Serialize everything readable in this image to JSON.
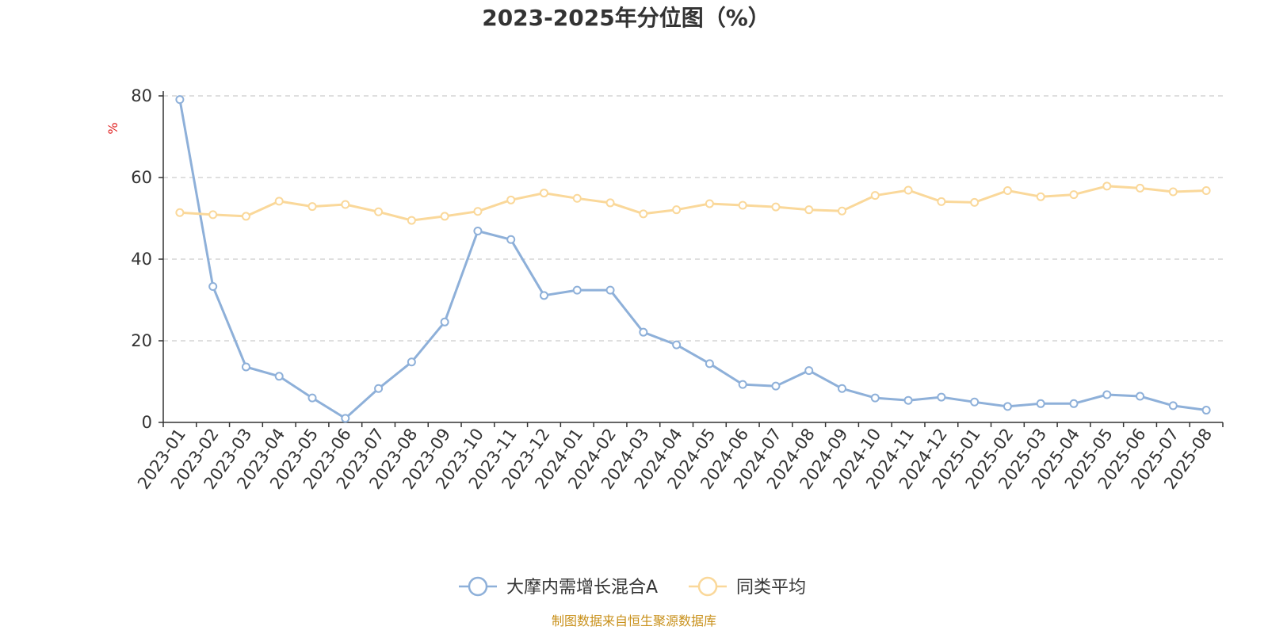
{
  "chart_data": {
    "type": "line",
    "title": "2023-2025年分位图（%）",
    "ylabel": "%",
    "ylim": [
      0,
      80
    ],
    "yticks": [
      0,
      20,
      40,
      60,
      80
    ],
    "grid": "horizontal-dashed",
    "legend_position": "bottom",
    "categories": [
      "2023-01",
      "2023-02",
      "2023-03",
      "2023-04",
      "2023-05",
      "2023-06",
      "2023-07",
      "2023-08",
      "2023-09",
      "2023-10",
      "2023-11",
      "2023-12",
      "2024-01",
      "2024-02",
      "2024-03",
      "2024-04",
      "2024-05",
      "2024-06",
      "2024-07",
      "2024-08",
      "2024-09",
      "2024-10",
      "2024-11",
      "2024-12",
      "2025-01",
      "2025-02",
      "2025-03",
      "2025-04",
      "2025-05",
      "2025-06",
      "2025-07",
      "2025-08"
    ],
    "series": [
      {
        "name": "大摩内需增长混合A",
        "color": "#8eb0d9",
        "values": [
          79.1,
          33.3,
          13.6,
          11.3,
          6.0,
          1.0,
          8.3,
          14.8,
          24.6,
          46.9,
          44.8,
          31.1,
          32.4,
          32.4,
          22.1,
          19.0,
          14.4,
          9.3,
          8.9,
          12.7,
          8.3,
          6.0,
          5.4,
          6.2,
          5.0,
          3.9,
          4.6,
          4.6,
          6.8,
          6.4,
          4.1,
          3.0
        ]
      },
      {
        "name": "同类平均",
        "color": "#fad89a",
        "values": [
          51.4,
          50.9,
          50.5,
          54.2,
          52.9,
          53.4,
          51.6,
          49.5,
          50.5,
          51.7,
          54.5,
          56.2,
          54.9,
          53.8,
          51.1,
          52.1,
          53.6,
          53.2,
          52.8,
          52.1,
          51.8,
          55.6,
          56.9,
          54.1,
          53.9,
          56.8,
          55.3,
          55.8,
          57.9,
          57.4,
          56.5,
          56.8
        ]
      }
    ]
  },
  "footer": {
    "source_text": "制图数据来自恒生聚源数据库"
  }
}
